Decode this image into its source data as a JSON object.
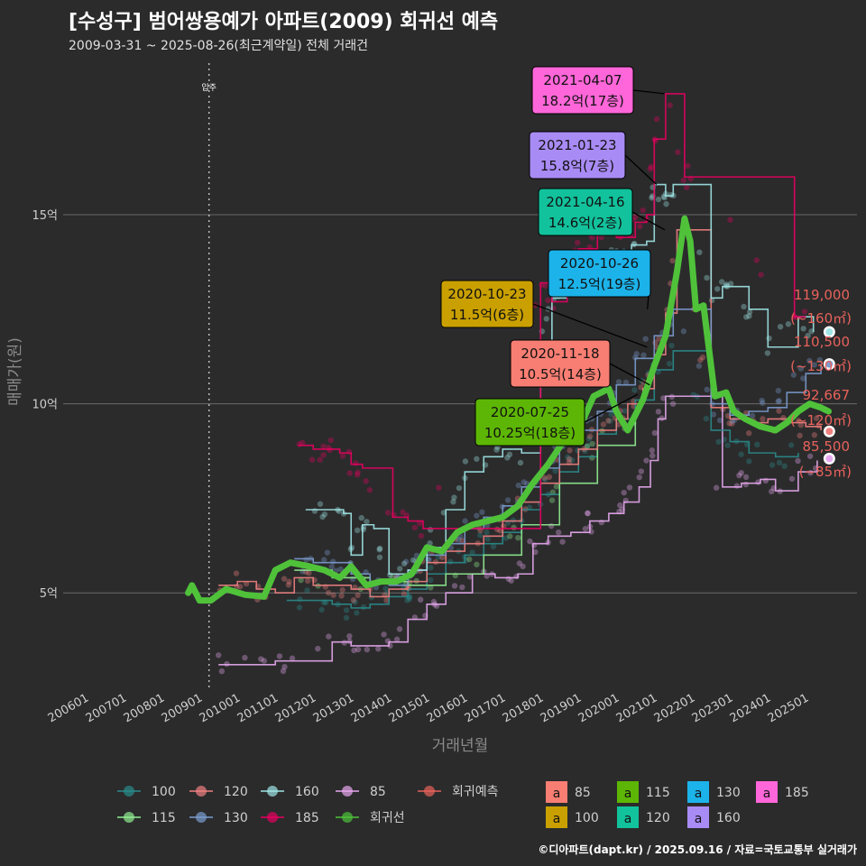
{
  "title": "[수성구] 범어쌍용예가 아파트(2009) 회귀선 예측",
  "subtitle": "2009-03-31 ~ 2025-08-26(최근계약일) 전체 거래건",
  "caption": "©디아파트(dapt.kr) / 2025.09.16 / 자료=국토교통부 실거래가",
  "chart_data": {
    "type": "line",
    "xlabel": "거래년월",
    "ylabel": "매매가(원)",
    "x_ticks": [
      "200601",
      "200701",
      "200801",
      "200901",
      "201001",
      "201101",
      "201201",
      "201301",
      "201401",
      "201501",
      "201601",
      "201701",
      "201801",
      "201901",
      "202001",
      "202101",
      "202201",
      "202301",
      "202401",
      "202501"
    ],
    "y_ticks": [
      {
        "value": 5,
        "label": "5억"
      },
      {
        "value": 10,
        "label": "10억"
      },
      {
        "value": 15,
        "label": "15억"
      }
    ],
    "ylim": [
      2.5,
      19.2
    ],
    "grid": true,
    "vline": {
      "x": 2009.25,
      "label": "입주"
    },
    "colors": {
      "100": "#2a8b8b",
      "115": "#90ee90",
      "120": "#f08080",
      "130": "#7b9ccf",
      "160": "#a0e6e6",
      "185": "#e8005f",
      "85": "#e8a8f0",
      "회귀선": "#4fc23a",
      "회귀예측": "#e8625a"
    },
    "regression": {
      "name": "회귀선",
      "x": [
        2008.7,
        2008.8,
        2009.0,
        2009.3,
        2009.7,
        2010.2,
        2010.7,
        2011.0,
        2011.4,
        2011.9,
        2012.3,
        2012.7,
        2013.0,
        2013.4,
        2013.8,
        2014.2,
        2014.6,
        2015.0,
        2015.4,
        2015.8,
        2016.2,
        2016.6,
        2017.0,
        2017.4,
        2017.8,
        2018.2,
        2018.6,
        2019.0,
        2019.4,
        2019.8,
        2020.0,
        2020.3,
        2020.7,
        2021.0,
        2021.3,
        2021.6,
        2021.8,
        2021.95,
        2022.1,
        2022.3,
        2022.6,
        2022.9,
        2023.1,
        2023.4,
        2023.8,
        2024.2,
        2024.5,
        2024.8,
        2025.1,
        2025.4,
        2025.6
      ],
      "y": [
        5.0,
        5.2,
        4.8,
        4.8,
        5.1,
        4.95,
        4.9,
        5.6,
        5.8,
        5.7,
        5.6,
        5.4,
        5.7,
        5.2,
        5.3,
        5.3,
        5.5,
        6.2,
        6.1,
        6.6,
        6.8,
        6.9,
        7.0,
        7.3,
        7.9,
        8.4,
        9.0,
        9.3,
        10.2,
        10.4,
        9.8,
        9.3,
        10.1,
        11.0,
        11.8,
        13.5,
        14.9,
        14.3,
        12.5,
        12.6,
        10.2,
        10.3,
        9.8,
        9.6,
        9.4,
        9.3,
        9.5,
        9.8,
        10.0,
        9.9,
        9.8
      ]
    },
    "annotations": [
      {
        "date": "2021-04-07",
        "price": "18.2억(17층)",
        "color": "#ff66d9"
      },
      {
        "date": "2021-01-23",
        "price": "15.8억(7층)",
        "color": "#a98bf5"
      },
      {
        "date": "2021-04-16",
        "price": "14.6억(2층)",
        "color": "#12c29c"
      },
      {
        "date": "2020-10-26",
        "price": "12.5억(19층)",
        "color": "#1cb3ea"
      },
      {
        "date": "2020-10-23",
        "price": "11.5억(6층)",
        "color": "#c9a000"
      },
      {
        "date": "2020-11-18",
        "price": "10.5억(14층)",
        "color": "#f87e73"
      },
      {
        "date": "2020-07-25",
        "price": "10.25억(18층)",
        "color": "#5db605"
      }
    ],
    "predictions": [
      {
        "value": "119,000",
        "area": "(~160㎡)",
        "y": 11.9
      },
      {
        "value": "110,500",
        "area": "(~130㎡)",
        "y": 11.05
      },
      {
        "value": "92,667",
        "area": "(~120㎡)",
        "y": 9.27
      },
      {
        "value": "85,500",
        "area": "(~85㎡)",
        "y": 8.55
      }
    ],
    "legend_lines": [
      {
        "name": "100",
        "color": "#2a8b8b"
      },
      {
        "name": "120",
        "color": "#f08080"
      },
      {
        "name": "160",
        "color": "#a0e6e6"
      },
      {
        "name": "85",
        "color": "#e8a8f0"
      },
      {
        "name": "회귀예측",
        "color": "#e8625a"
      },
      {
        "name": "115",
        "color": "#90ee90"
      },
      {
        "name": "130",
        "color": "#7b9ccf"
      },
      {
        "name": "185",
        "color": "#e8005f"
      },
      {
        "name": "회귀선",
        "color": "#4fc23a"
      }
    ],
    "legend_labels": [
      {
        "name": "85",
        "color": "#f87e73",
        "key": "a"
      },
      {
        "name": "115",
        "color": "#5db605",
        "key": "a"
      },
      {
        "name": "130",
        "color": "#1cb3ea",
        "key": "a"
      },
      {
        "name": "185",
        "color": "#ff66d9",
        "key": "a"
      },
      {
        "name": "100",
        "color": "#c9a000",
        "key": "a"
      },
      {
        "name": "120",
        "color": "#12c29c",
        "key": "a"
      },
      {
        "name": "160",
        "color": "#a98bf5",
        "key": "a"
      }
    ],
    "series": [
      {
        "name": "85",
        "x": [
          2009.5,
          2009.8,
          2011.0,
          2011.3,
          2012.5,
          2013.0,
          2013.5,
          2014.0,
          2014.5,
          2015.0,
          2015.5,
          2016.2,
          2016.8,
          2017.4,
          2017.8,
          2018.2,
          2018.8,
          2019.3,
          2019.8,
          2020.2,
          2020.6,
          2020.9,
          2021.1,
          2021.3,
          2022.8,
          2023.3,
          2023.8,
          2024.2,
          2024.8,
          2025.3
        ],
        "y": [
          3.1,
          3.1,
          3.2,
          3.2,
          3.7,
          3.6,
          3.6,
          3.7,
          4.3,
          4.7,
          5.0,
          5.5,
          5.4,
          5.5,
          6.3,
          6.5,
          6.6,
          6.9,
          7.1,
          7.4,
          7.8,
          8.5,
          9.6,
          10.2,
          7.8,
          7.9,
          8.0,
          7.7,
          8.2,
          8.5
        ]
      },
      {
        "name": "100",
        "x": [
          2011.3,
          2012.0,
          2012.5,
          2013.0,
          2013.5,
          2014.0,
          2014.5,
          2015.0,
          2015.5,
          2016.0,
          2016.5,
          2017.0,
          2017.5,
          2018.0,
          2018.5,
          2019.0,
          2019.5,
          2020.0,
          2020.5,
          2021.0,
          2021.5,
          2022.5,
          2023.0,
          2023.5,
          2024.2,
          2024.8
        ],
        "y": [
          4.8,
          4.8,
          4.7,
          4.6,
          4.7,
          4.9,
          5.1,
          5.5,
          5.8,
          6.0,
          6.3,
          6.6,
          7.2,
          7.6,
          8.2,
          8.6,
          9.2,
          9.6,
          10.1,
          10.9,
          11.4,
          9.3,
          9.0,
          8.7,
          8.6,
          8.7
        ]
      },
      {
        "name": "115",
        "x": [
          2011.5,
          2012.5,
          2013.5,
          2014.5,
          2015.5,
          2016.5,
          2017.5,
          2018.5,
          2019.5,
          2020.5
        ],
        "y": [
          5.6,
          5.4,
          5.3,
          5.2,
          5.5,
          6.0,
          6.8,
          7.9,
          8.9,
          9.8
        ]
      },
      {
        "name": "120",
        "x": [
          2009.5,
          2010.0,
          2010.5,
          2011.0,
          2011.5,
          2012.0,
          2012.5,
          2013.0,
          2013.5,
          2014.0,
          2014.5,
          2015.0,
          2015.5,
          2016.0,
          2016.5,
          2017.0,
          2017.5,
          2018.0,
          2018.5,
          2019.0,
          2019.5,
          2020.0,
          2020.3,
          2020.7,
          2021.0,
          2021.3,
          2021.6,
          2022.5,
          2023.0,
          2023.5,
          2024.0,
          2024.5,
          2025.0,
          2025.4
        ],
        "y": [
          5.2,
          5.3,
          5.1,
          5.0,
          5.4,
          5.2,
          5.2,
          5.1,
          4.9,
          5.1,
          5.3,
          5.8,
          6.1,
          6.3,
          6.5,
          6.9,
          7.4,
          7.9,
          8.4,
          8.8,
          9.3,
          9.6,
          10.0,
          10.4,
          11.3,
          12.4,
          14.6,
          9.9,
          9.6,
          9.5,
          9.6,
          9.5,
          9.4,
          9.3
        ]
      },
      {
        "name": "130",
        "x": [
          2011.5,
          2012.0,
          2012.5,
          2013.0,
          2013.5,
          2014.0,
          2014.5,
          2015.0,
          2015.5,
          2016.0,
          2016.5,
          2017.0,
          2017.5,
          2018.0,
          2018.5,
          2019.0,
          2019.5,
          2020.0,
          2020.5,
          2021.0,
          2021.5,
          2022.5,
          2023.0,
          2023.5,
          2024.0,
          2024.5,
          2025.0,
          2025.4
        ],
        "y": [
          5.9,
          5.8,
          5.8,
          5.5,
          5.3,
          5.2,
          5.6,
          6.0,
          6.3,
          6.7,
          7.0,
          7.3,
          7.8,
          8.3,
          8.9,
          9.3,
          9.8,
          10.5,
          11.2,
          11.8,
          12.5,
          10.0,
          9.7,
          9.8,
          9.9,
          10.3,
          10.8,
          11.05
        ]
      },
      {
        "name": "160",
        "x": [
          2011.8,
          2012.3,
          2012.8,
          2013.0,
          2013.3,
          2013.6,
          2014.0,
          2014.5,
          2015.0,
          2015.5,
          2016.0,
          2016.5,
          2017.0,
          2017.5,
          2018.0,
          2018.3,
          2018.7,
          2019.0,
          2019.5,
          2020.0,
          2020.4,
          2020.8,
          2021.0,
          2021.3,
          2021.5,
          2022.5,
          2022.8,
          2023.0,
          2023.5,
          2024.0,
          2024.8,
          2025.2
        ],
        "y": [
          7.2,
          7.2,
          7.1,
          6.0,
          6.8,
          6.7,
          5.5,
          5.6,
          6.2,
          7.2,
          8.2,
          8.6,
          8.8,
          8.7,
          11.5,
          12.8,
          13.2,
          13.4,
          13.5,
          14.0,
          14.2,
          14.3,
          15.8,
          15.5,
          15.8,
          12.8,
          13.1,
          13.1,
          12.5,
          11.5,
          12.3,
          11.9
        ]
      },
      {
        "name": "185",
        "x": [
          2011.6,
          2012.0,
          2012.3,
          2012.7,
          2013.0,
          2013.3,
          2014.1,
          2014.5,
          2014.9,
          2018.0,
          2018.3,
          2018.7,
          2019.0,
          2019.5,
          2020.0,
          2020.5,
          2020.8,
          2021.0,
          2021.3,
          2021.8,
          2022.0,
          2024.7,
          2025.0
        ],
        "y": [
          8.9,
          8.8,
          8.8,
          8.7,
          8.4,
          8.3,
          7.0,
          6.9,
          6.7,
          13.2,
          12.7,
          13.5,
          14.1,
          14.5,
          14.4,
          14.8,
          15.0,
          17.0,
          18.2,
          16.0,
          16.0,
          12.3,
          12.3
        ]
      }
    ]
  }
}
